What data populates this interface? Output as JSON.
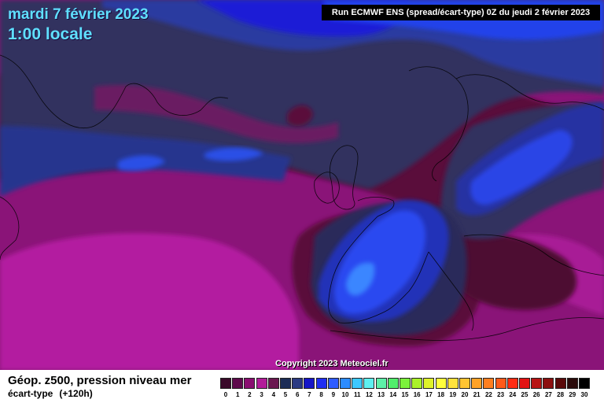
{
  "header": {
    "date": "mardi 7 février 2023",
    "time": "1:00 locale",
    "run": "Run ECMWF ENS (spread/écart-type) 0Z du jeudi 2 février 2023"
  },
  "copyright": "Copyright 2023 Meteociel.fr",
  "footer": {
    "title": "Géop. z500, pression niveau mer",
    "subtitle": "écart-type",
    "lead": "(+120h)"
  },
  "legend": {
    "ticks": [
      "0",
      "1",
      "2",
      "3",
      "4",
      "5",
      "6",
      "7",
      "8",
      "9",
      "10",
      "11",
      "12",
      "13",
      "14",
      "15",
      "16",
      "17",
      "18",
      "19",
      "20",
      "21",
      "22",
      "23",
      "24",
      "25",
      "26",
      "27",
      "28",
      "29",
      "30"
    ],
    "colors": [
      "#3a0a2a",
      "#5e0a4c",
      "#8a0e70",
      "#b21c99",
      "#6a1750",
      "#1c2c56",
      "#2b3a82",
      "#1616c8",
      "#1f2ef2",
      "#2f5cff",
      "#2c8cff",
      "#3cc8ff",
      "#5ef0f0",
      "#5ef0a8",
      "#52ee6c",
      "#7cf23c",
      "#aaf22a",
      "#dff22a",
      "#ffff3c",
      "#ffe23c",
      "#ffc432",
      "#ffa228",
      "#ff7f20",
      "#ff5a1a",
      "#ff2c14",
      "#e31414",
      "#b81414",
      "#8c1010",
      "#5a0a0a",
      "#2a0a0a",
      "#000000"
    ]
  }
}
